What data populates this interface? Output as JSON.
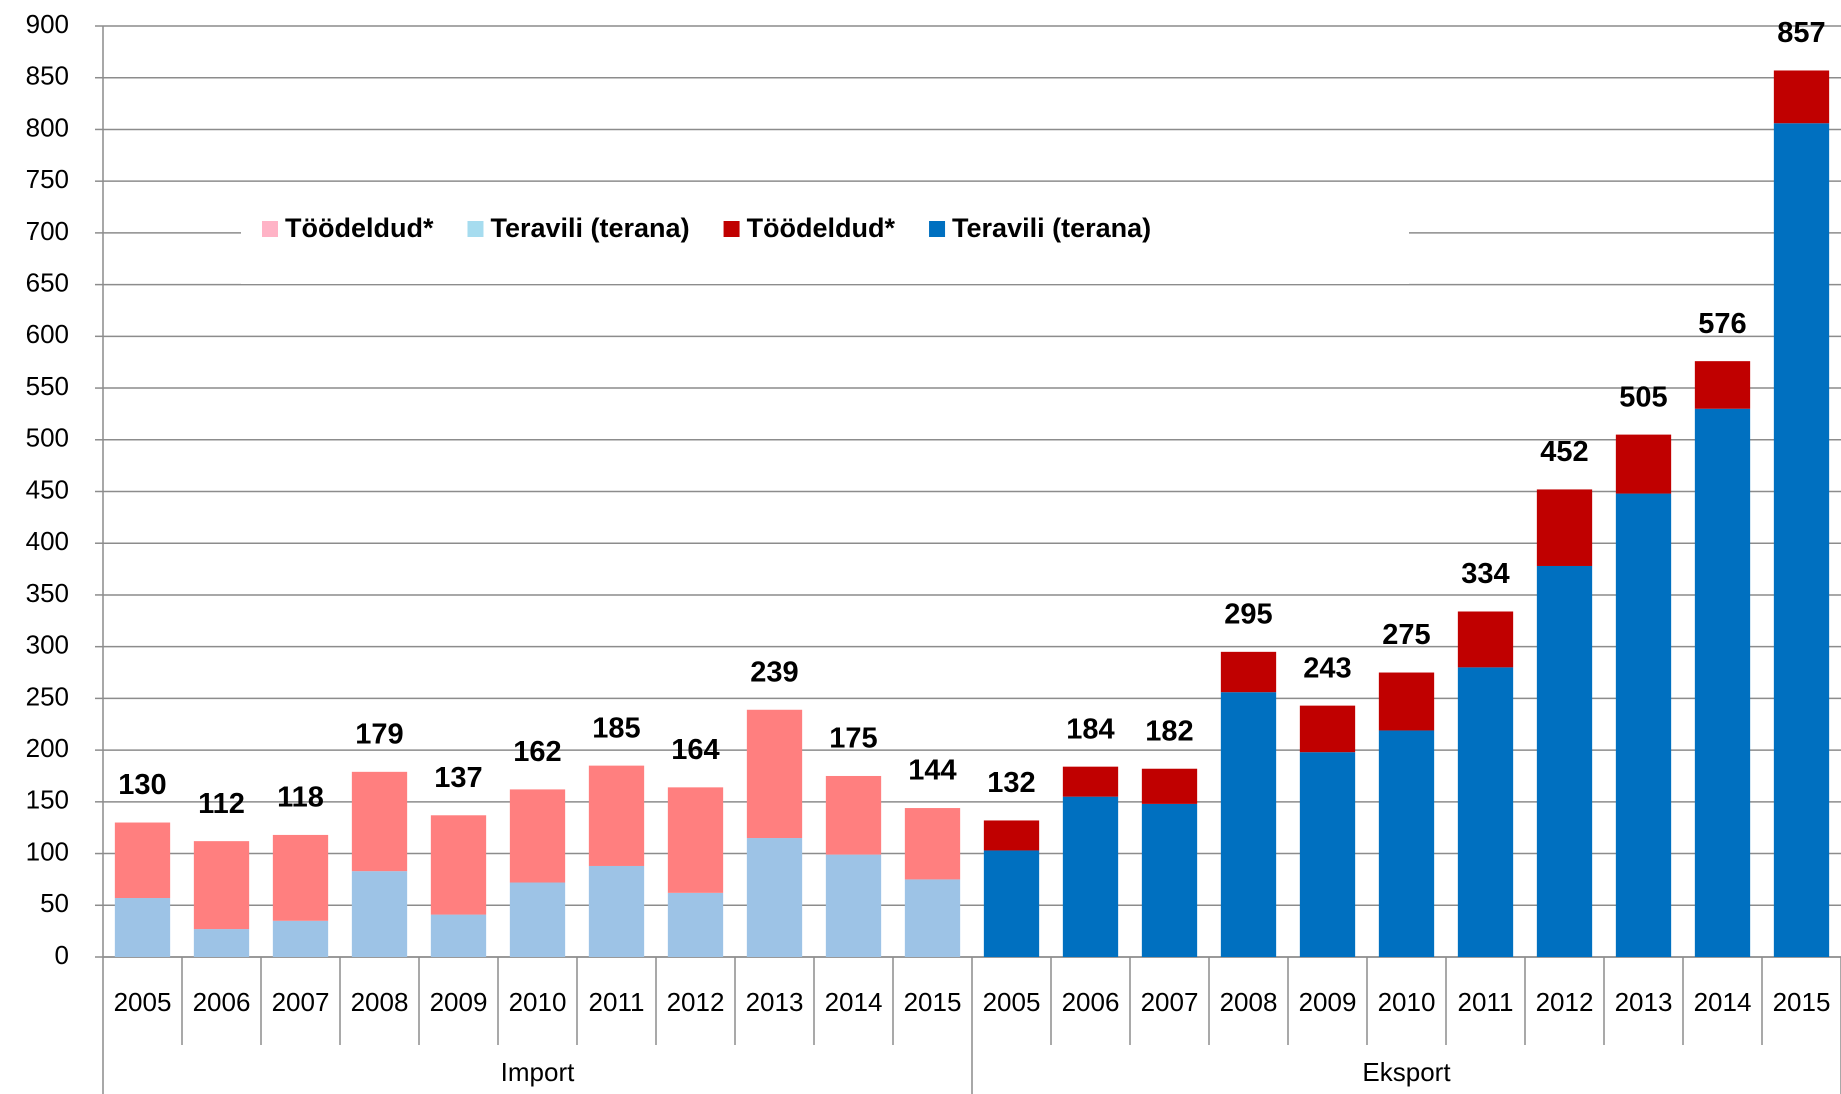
{
  "chart_data": {
    "type": "stacked_bar",
    "categories": [
      "2005",
      "2006",
      "2007",
      "2008",
      "2009",
      "2010",
      "2011",
      "2012",
      "2013",
      "2014",
      "2015",
      "2005",
      "2006",
      "2007",
      "2008",
      "2009",
      "2010",
      "2011",
      "2012",
      "2013",
      "2014",
      "2015"
    ],
    "groups": [
      "Import",
      "Eksport"
    ],
    "series": [
      {
        "name": "Töödeldud*",
        "color": "#ff7f7f",
        "values": [
          73,
          85,
          83,
          96,
          96,
          90,
          97,
          102,
          124,
          76,
          69,
          null,
          null,
          null,
          null,
          null,
          null,
          null,
          null,
          null,
          null,
          null
        ]
      },
      {
        "name": "Teravili (terana)",
        "color": "#9dc3e6",
        "values": [
          57,
          27,
          35,
          83,
          41,
          72,
          88,
          62,
          115,
          99,
          75,
          null,
          null,
          null,
          null,
          null,
          null,
          null,
          null,
          null,
          null,
          null
        ]
      },
      {
        "name": "Töödeldud*",
        "color": "#c00000",
        "values": [
          null,
          null,
          null,
          null,
          null,
          null,
          null,
          null,
          null,
          null,
          null,
          29,
          29,
          34,
          39,
          45,
          56,
          54,
          74,
          57,
          46,
          51
        ]
      },
      {
        "name": "Teravili (terana)",
        "color": "#0070c0",
        "values": [
          null,
          null,
          null,
          null,
          null,
          null,
          null,
          null,
          null,
          null,
          null,
          103,
          155,
          148,
          256,
          198,
          219,
          280,
          378,
          448,
          530,
          806
        ]
      }
    ],
    "totals": [
      130,
      112,
      118,
      179,
      137,
      162,
      185,
      164,
      239,
      175,
      144,
      132,
      184,
      182,
      295,
      243,
      275,
      334,
      452,
      505,
      576,
      857
    ],
    "legend_colors": [
      "#ffb3c6",
      "#a6dcef",
      "#c00000",
      "#0070c0"
    ],
    "ylim": [
      0,
      900
    ],
    "yticks": [
      0,
      50,
      100,
      150,
      200,
      250,
      300,
      350,
      400,
      450,
      500,
      550,
      600,
      650,
      700,
      750,
      800,
      850,
      900
    ],
    "grid": true
  }
}
